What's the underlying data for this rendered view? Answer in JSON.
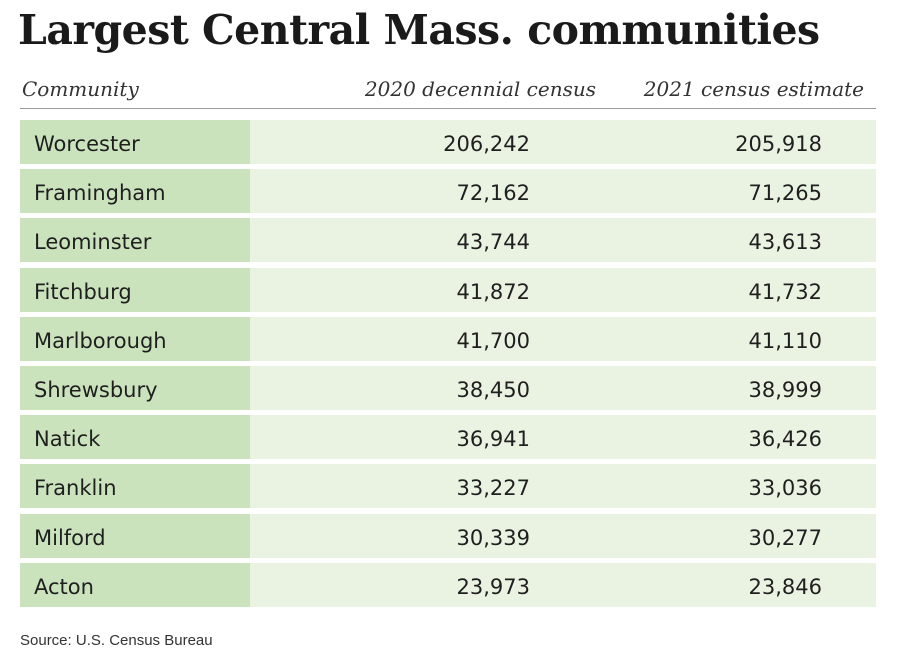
{
  "title": "Largest Central Mass. communities",
  "source": "Source: U.S. Census Bureau",
  "colors": {
    "name_column_bg": "#cbe3bd",
    "row_bg": "#eaf3e2",
    "header_rule": "#9a9a9a"
  },
  "chart_data": {
    "type": "table",
    "title": "Largest Central Mass. communities",
    "columns": [
      "Community",
      "2020 decennial census",
      "2021 census estimate"
    ],
    "rows": [
      [
        "Worcester",
        "206,242",
        "205,918"
      ],
      [
        "Framingham",
        "72,162",
        "71,265"
      ],
      [
        "Leominster",
        "43,744",
        "43,613"
      ],
      [
        "Fitchburg",
        "41,872",
        "41,732"
      ],
      [
        "Marlborough",
        "41,700",
        "41,110"
      ],
      [
        "Shrewsbury",
        "38,450",
        "38,999"
      ],
      [
        "Natick",
        "36,941",
        "36,426"
      ],
      [
        "Franklin",
        "33,227",
        "33,036"
      ],
      [
        "Milford",
        "30,339",
        "30,277"
      ],
      [
        "Acton",
        "23,973",
        "23,846"
      ]
    ]
  }
}
